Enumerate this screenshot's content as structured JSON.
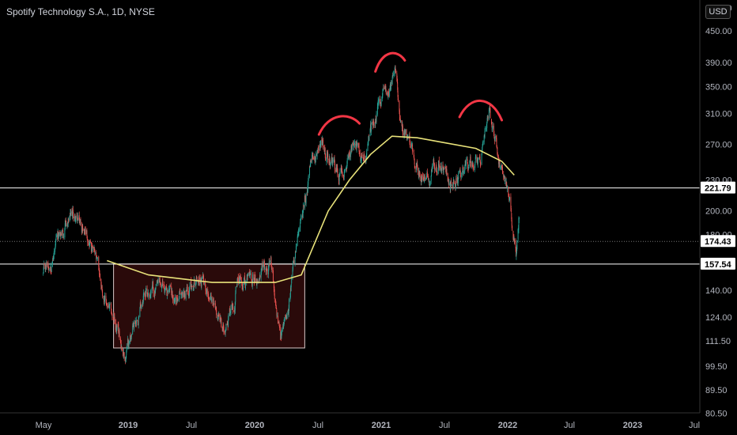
{
  "header": {
    "title": "Spotify Technology S.A., 1D, NYSE",
    "currency": "USD"
  },
  "colors": {
    "up": "#26a69a",
    "down": "#ef5350",
    "ma": "#e8e27a",
    "arc": "#f23645",
    "level": "#ffffff",
    "box_fill": "#2a0a0a",
    "box_stroke": "#d8c8c8"
  },
  "chart_data": {
    "type": "candlestick",
    "title": "Spotify Technology S.A., 1D, NYSE",
    "x_ticks": [
      "May",
      "2019",
      "Jul",
      "2020",
      "Jul",
      "2021",
      "Jul",
      "2022",
      "Jul",
      "2023",
      "Jul"
    ],
    "y_ticks": [
      80.5,
      89.5,
      99.5,
      111.5,
      124.0,
      140.0,
      160.0,
      180.0,
      200.0,
      230.0,
      270.0,
      310.0,
      350.0,
      390.0,
      450.0
    ],
    "y_scale": "log",
    "ylim": [
      80.5,
      525
    ],
    "price_path": [
      [
        "2018-05-01",
        150
      ],
      [
        "2018-06-15",
        175
      ],
      [
        "2018-07-25",
        195
      ],
      [
        "2018-09-10",
        180
      ],
      [
        "2018-10-25",
        135
      ],
      [
        "2018-12-24",
        105
      ],
      [
        "2019-02-15",
        140
      ],
      [
        "2019-04-15",
        140
      ],
      [
        "2019-06-01",
        135
      ],
      [
        "2019-07-25",
        150
      ],
      [
        "2019-08-25",
        140
      ],
      [
        "2019-10-01",
        115
      ],
      [
        "2019-11-15",
        145
      ],
      [
        "2020-01-10",
        150
      ],
      [
        "2020-02-20",
        155
      ],
      [
        "2020-03-16",
        110
      ],
      [
        "2020-04-15",
        145
      ],
      [
        "2020-05-10",
        180
      ],
      [
        "2020-06-10",
        240
      ],
      [
        "2020-07-10",
        280
      ],
      [
        "2020-08-01",
        250
      ],
      [
        "2020-09-01",
        235
      ],
      [
        "2020-10-10",
        270
      ],
      [
        "2020-11-10",
        250
      ],
      [
        "2020-12-20",
        315
      ],
      [
        "2021-01-20",
        350
      ],
      [
        "2021-02-10",
        375
      ],
      [
        "2021-03-05",
        290
      ],
      [
        "2021-05-10",
        225
      ],
      [
        "2021-06-15",
        250
      ],
      [
        "2021-07-20",
        225
      ],
      [
        "2021-08-15",
        230
      ],
      [
        "2021-09-10",
        245
      ],
      [
        "2021-10-10",
        245
      ],
      [
        "2021-11-10",
        305
      ],
      [
        "2021-12-10",
        245
      ],
      [
        "2022-01-05",
        215
      ],
      [
        "2022-01-25",
        160
      ],
      [
        "2022-02-03",
        200
      ]
    ],
    "ma_path": [
      [
        "2018-11-01",
        160
      ],
      [
        "2019-03-01",
        150
      ],
      [
        "2019-09-01",
        145
      ],
      [
        "2020-03-01",
        145
      ],
      [
        "2020-05-15",
        150
      ],
      [
        "2020-08-01",
        200
      ],
      [
        "2020-10-01",
        230
      ],
      [
        "2020-12-01",
        258
      ],
      [
        "2021-02-01",
        280
      ],
      [
        "2021-04-15",
        278
      ],
      [
        "2021-07-01",
        272
      ],
      [
        "2021-10-01",
        265
      ],
      [
        "2021-12-15",
        250
      ],
      [
        "2022-01-20",
        235
      ]
    ],
    "consolidation_box": {
      "x_start": "2018-11-20",
      "x_end": "2020-05-25",
      "y_low": 108,
      "y_high": 157.54
    },
    "levels": [
      {
        "value": 221.79,
        "label": "221.79"
      },
      {
        "value": 174.43,
        "label": "174.43",
        "style": "dotted"
      },
      {
        "value": 157.54,
        "label": "157.54"
      }
    ],
    "arcs": [
      {
        "x_start": "2020-07-05",
        "x_end": "2020-10-30",
        "peak": 305
      },
      {
        "x_start": "2020-12-15",
        "x_end": "2021-03-10",
        "peak": 405
      },
      {
        "x_start": "2021-08-15",
        "x_end": "2021-12-15",
        "peak": 330
      }
    ]
  }
}
